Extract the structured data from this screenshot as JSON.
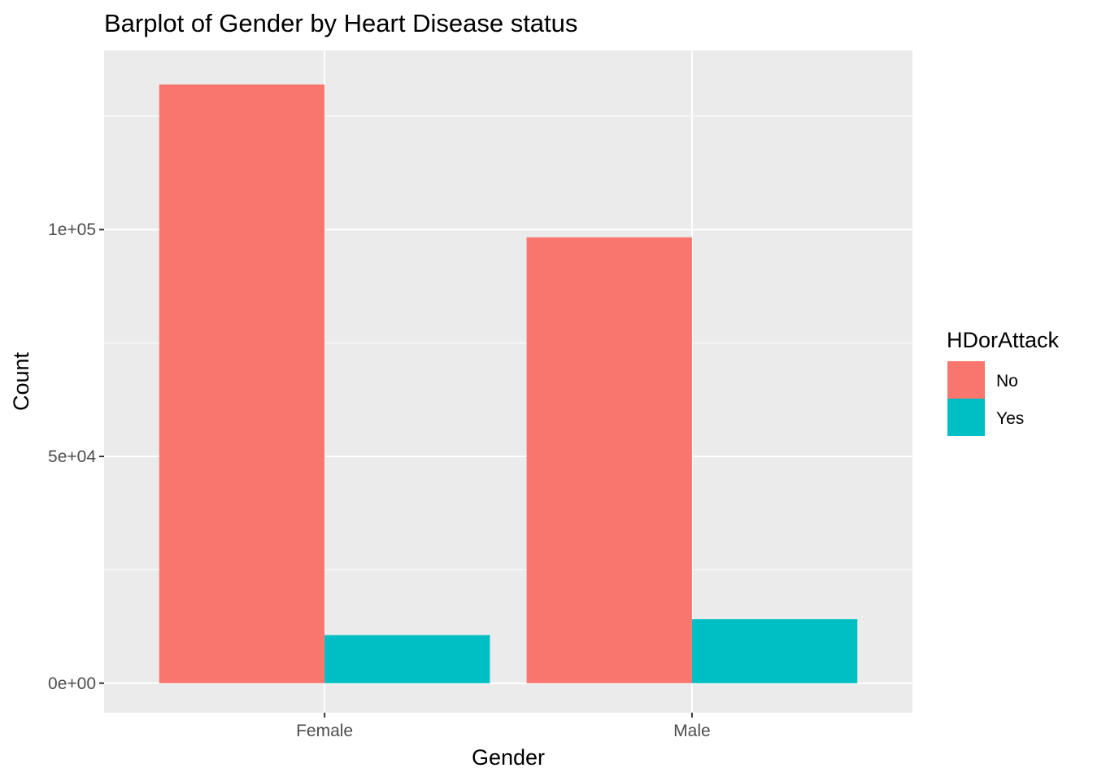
{
  "chart_data": {
    "type": "bar",
    "title": "Barplot of Gender by Heart Disease status",
    "xlabel": "Gender",
    "ylabel": "Count",
    "categories": [
      "Female",
      "Male"
    ],
    "series": [
      {
        "name": "No",
        "color": "#F8766D",
        "values": [
          132000,
          98300
        ]
      },
      {
        "name": "Yes",
        "color": "#00BFC4",
        "values": [
          10600,
          14100
        ]
      }
    ],
    "ylim": [
      -6500,
      139500
    ],
    "y_ticks": [
      {
        "value": 0,
        "label": "0e+00"
      },
      {
        "value": 50000,
        "label": "5e+04"
      },
      {
        "value": 100000,
        "label": "1e+05"
      }
    ],
    "y_minor_ticks": [
      25000,
      75000,
      125000
    ],
    "legend": {
      "title": "HDorAttack",
      "position": "right"
    },
    "grid": true,
    "panel_background": "#EBEBEB"
  }
}
